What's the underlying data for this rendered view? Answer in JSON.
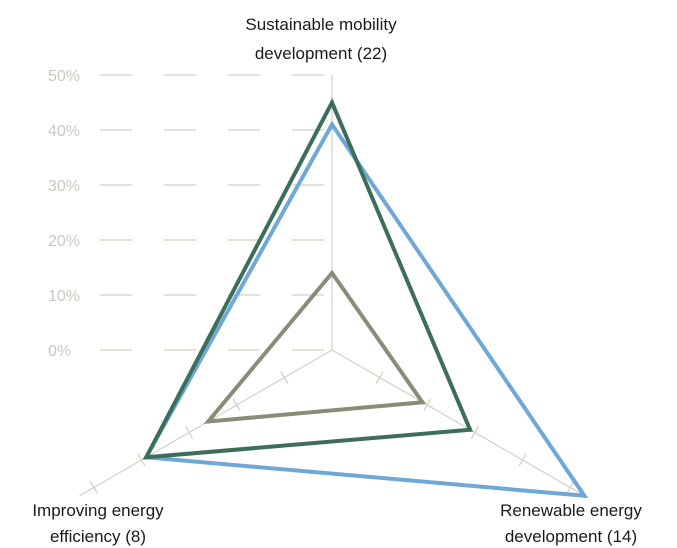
{
  "chart_data": {
    "type": "radar",
    "title": "",
    "axes": [
      {
        "name": "Sustainable mobility development (22)",
        "label_lines": [
          "Sustainable mobility",
          "development (22)"
        ]
      },
      {
        "name": "Renewable energy development (14)",
        "label_lines": [
          "Renewable energy",
          "development (14)"
        ]
      },
      {
        "name": "Improving energy efficiency (8)",
        "label_lines": [
          "Improving energy",
          "efficiency (8)"
        ]
      }
    ],
    "r_ticks": [
      "0%",
      "10%",
      "20%",
      "30%",
      "40%",
      "50%"
    ],
    "r_tick_values": [
      0,
      10,
      20,
      30,
      40,
      50
    ],
    "rlim": [
      0,
      50
    ],
    "grid": true,
    "legend": "none",
    "series": [
      {
        "color": "#6fa8d6",
        "values": [
          41,
          53,
          39
        ]
      },
      {
        "color": "#3d6e5a",
        "values": [
          45,
          29,
          39
        ]
      },
      {
        "color": "#8a8c78",
        "values": [
          14,
          19,
          26
        ]
      }
    ]
  }
}
